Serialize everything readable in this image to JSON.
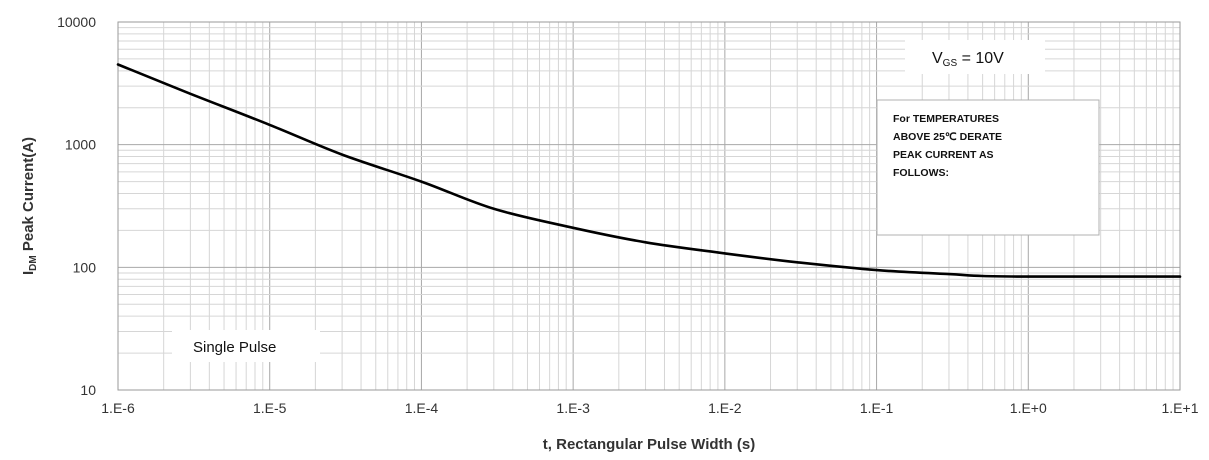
{
  "chart_data": {
    "type": "line",
    "xlabel": "t, Rectangular Pulse Width (s)",
    "ylabel_main": "I",
    "ylabel_sub": "DM",
    "ylabel_rest": " Peak Current(A)",
    "x_scale": "log",
    "y_scale": "log",
    "xlim": [
      1e-06,
      10
    ],
    "ylim": [
      10,
      10000
    ],
    "x_tick_labels": [
      "1.E-6",
      "1.E-5",
      "1.E-4",
      "1.E-3",
      "1.E-2",
      "1.E-1",
      "1.E+0",
      "1.E+1"
    ],
    "y_tick_labels": [
      "10",
      "100",
      "1000",
      "10000"
    ],
    "grid": true,
    "series": [
      {
        "color": "#000000",
        "x": [
          1e-06,
          3e-06,
          1e-05,
          3e-05,
          0.0001,
          0.0003,
          0.001,
          0.003,
          0.01,
          0.03,
          0.1,
          0.3,
          0.5,
          1,
          3,
          10
        ],
        "y": [
          4500,
          2600,
          1450,
          830,
          500,
          300,
          210,
          160,
          130,
          110,
          95,
          88,
          85,
          84,
          84,
          84
        ]
      }
    ],
    "annotations": {
      "vgs_main": "V",
      "vgs_sub": "GS",
      "vgs_rest": " = 10V",
      "derate_lines": [
        "For TEMPERATURES",
        "ABOVE 25℃ DERATE",
        "PEAK CURRENT AS",
        "FOLLOWS:"
      ],
      "single_pulse": "Single Pulse"
    }
  }
}
